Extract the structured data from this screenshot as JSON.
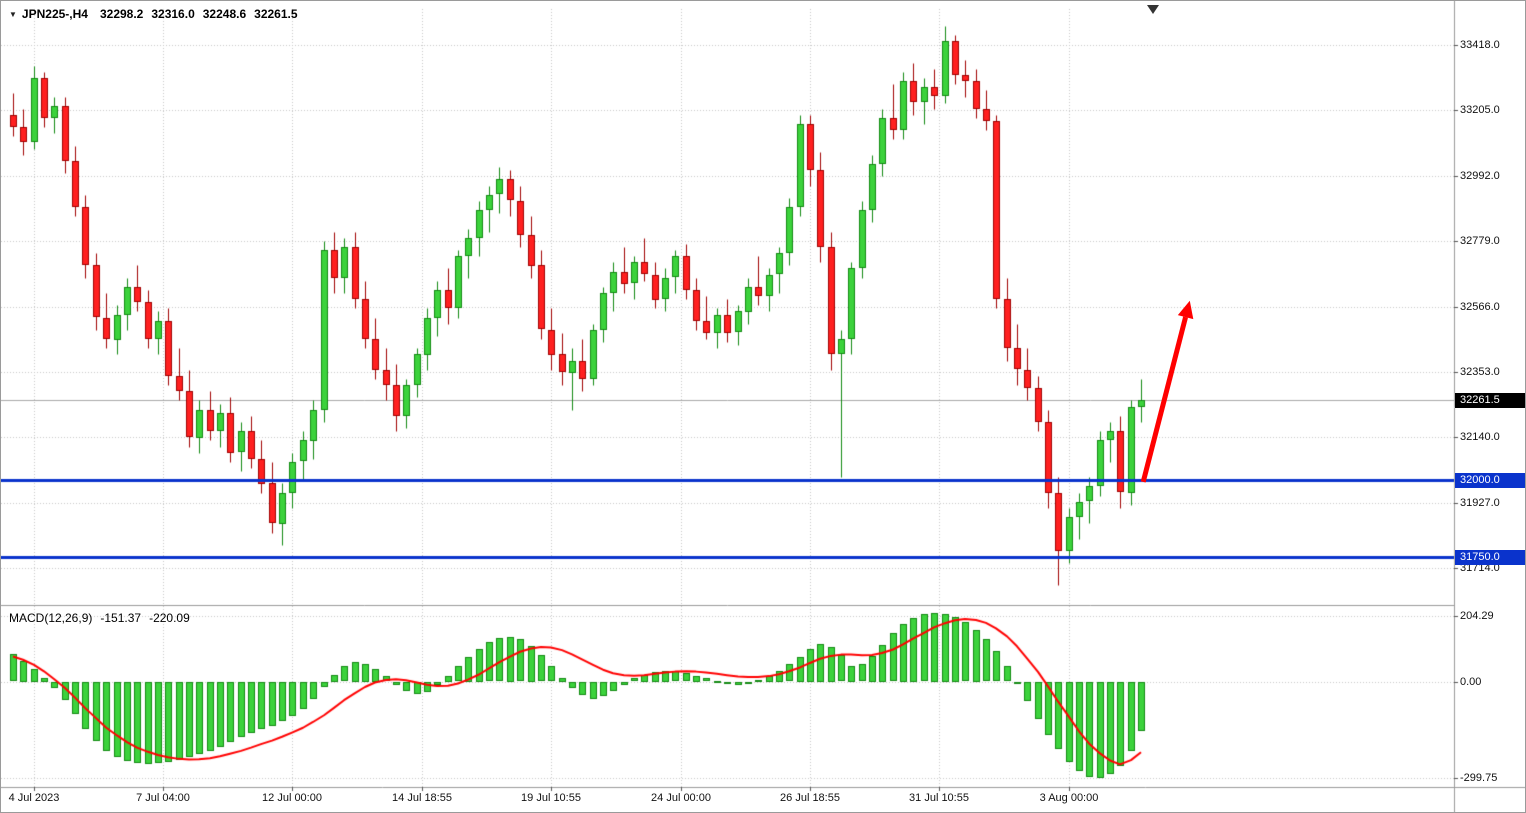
{
  "header": {
    "dropdown_icon": "▼",
    "symbol": "JPN225-,H4",
    "open": "32298.2",
    "high": "32316.0",
    "low": "32248.6",
    "close": "32261.5"
  },
  "current_price": {
    "value": 32261.5,
    "label": "32261.5"
  },
  "hlines": [
    {
      "value": 32000.0,
      "label": "32000.0"
    },
    {
      "value": 31750.0,
      "label": "31750.0"
    }
  ],
  "price_axis": {
    "ticks": [
      {
        "value": 33418.0,
        "label": "33418.0"
      },
      {
        "value": 33205.0,
        "label": "33205.0"
      },
      {
        "value": 32992.0,
        "label": "32992.0"
      },
      {
        "value": 32779.0,
        "label": "32779.0"
      },
      {
        "value": 32566.0,
        "label": "32566.0"
      },
      {
        "value": 32353.0,
        "label": "32353.0"
      },
      {
        "value": 32140.0,
        "label": "32140.0"
      },
      {
        "value": 31927.0,
        "label": "31927.0"
      },
      {
        "value": 31714.0,
        "label": "31714.0"
      }
    ]
  },
  "time_axis": {
    "ticks": [
      {
        "idx": 2,
        "label": "4 Jul 2023"
      },
      {
        "idx": 14.5,
        "label": "7 Jul 04:00"
      },
      {
        "idx": 27,
        "label": "12 Jul 00:00"
      },
      {
        "idx": 39.5,
        "label": "14 Jul 18:55"
      },
      {
        "idx": 52,
        "label": "19 Jul 10:55"
      },
      {
        "idx": 64.5,
        "label": "24 Jul 00:00"
      },
      {
        "idx": 77,
        "label": "26 Jul 18:55"
      },
      {
        "idx": 89.5,
        "label": "31 Jul 10:55"
      },
      {
        "idx": 102,
        "label": "3 Aug 00:00"
      }
    ]
  },
  "macd_panel": {
    "name": "MACD(12,26,9)",
    "main_value": "-151.37",
    "signal_value": "-220.09",
    "ticks": [
      {
        "value": 204.29,
        "label": "204.29"
      },
      {
        "value": 0,
        "label": "0.00"
      },
      {
        "value": -299.75,
        "label": "-299.75"
      }
    ]
  },
  "colors": {
    "bull_fill": "#3cd23c",
    "bull_edge": "#128a12",
    "bear_fill": "#ff2020",
    "bear_edge": "#a00000",
    "grid": "#c6c6c6",
    "hline": "#0a33cc",
    "current_line": "#a8a8a8",
    "signal": "#ff0000",
    "hist_fill": "#3cd23c",
    "hist_edge": "#128a12",
    "arrow": "#ff0000",
    "separator": "#9a9a9a",
    "tick_mark": "#555555"
  },
  "chart_data": {
    "type": "candlestick",
    "symbol": "JPN225-",
    "timeframe": "H4",
    "title": "JPN225-,H4 32298.2 32316.0 32248.6 32261.5",
    "grid": "dotted",
    "ohlc_header": {
      "open": 32298.2,
      "high": 32316.0,
      "low": 32248.6,
      "close": 32261.5
    },
    "y_axis_visible_range": [
      31607,
      33535
    ],
    "price_gridlines": [
      33418,
      33205,
      32992,
      32779,
      32566,
      32353,
      32140,
      31927,
      31714
    ],
    "horizontal_levels": [
      32000.0,
      31750.0
    ],
    "time_labels": [
      "4 Jul 2023",
      "7 Jul 04:00",
      "12 Jul 00:00",
      "14 Jul 18:55",
      "19 Jul 10:55",
      "24 Jul 00:00",
      "26 Jul 18:55",
      "31 Jul 10:55",
      "3 Aug 00:00"
    ],
    "candles_ohlc": [
      [
        33190,
        33260,
        33120,
        33150
      ],
      [
        33150,
        33210,
        33060,
        33100
      ],
      [
        33100,
        33350,
        33080,
        33310
      ],
      [
        33310,
        33330,
        33150,
        33180
      ],
      [
        33180,
        33250,
        33130,
        33220
      ],
      [
        33220,
        33250,
        33000,
        33040
      ],
      [
        33040,
        33090,
        32860,
        32890
      ],
      [
        32890,
        32930,
        32660,
        32700
      ],
      [
        32700,
        32740,
        32490,
        32530
      ],
      [
        32530,
        32610,
        32430,
        32460
      ],
      [
        32460,
        32570,
        32410,
        32540
      ],
      [
        32540,
        32660,
        32490,
        32630
      ],
      [
        32630,
        32700,
        32550,
        32580
      ],
      [
        32580,
        32620,
        32430,
        32460
      ],
      [
        32460,
        32550,
        32410,
        32520
      ],
      [
        32520,
        32560,
        32310,
        32340
      ],
      [
        32340,
        32430,
        32260,
        32290
      ],
      [
        32290,
        32360,
        32110,
        32140
      ],
      [
        32140,
        32260,
        32090,
        32230
      ],
      [
        32230,
        32290,
        32130,
        32160
      ],
      [
        32160,
        32250,
        32110,
        32220
      ],
      [
        32220,
        32270,
        32060,
        32090
      ],
      [
        32090,
        32190,
        32030,
        32160
      ],
      [
        32160,
        32210,
        32040,
        32070
      ],
      [
        32070,
        32130,
        31960,
        31990
      ],
      [
        31990,
        32060,
        31830,
        31860
      ],
      [
        31860,
        31990,
        31790,
        31960
      ],
      [
        31960,
        32090,
        31910,
        32060
      ],
      [
        32060,
        32160,
        32000,
        32130
      ],
      [
        32130,
        32260,
        32070,
        32230
      ],
      [
        32230,
        32780,
        32190,
        32750
      ],
      [
        32750,
        32810,
        32610,
        32660
      ],
      [
        32660,
        32790,
        32610,
        32760
      ],
      [
        32760,
        32810,
        32560,
        32590
      ],
      [
        32590,
        32650,
        32430,
        32460
      ],
      [
        32460,
        32530,
        32330,
        32360
      ],
      [
        32360,
        32430,
        32260,
        32310
      ],
      [
        32310,
        32380,
        32160,
        32210
      ],
      [
        32210,
        32330,
        32170,
        32310
      ],
      [
        32310,
        32430,
        32270,
        32410
      ],
      [
        32410,
        32560,
        32360,
        32530
      ],
      [
        32530,
        32650,
        32470,
        32620
      ],
      [
        32620,
        32690,
        32510,
        32560
      ],
      [
        32560,
        32750,
        32530,
        32730
      ],
      [
        32730,
        32820,
        32660,
        32790
      ],
      [
        32790,
        32910,
        32730,
        32880
      ],
      [
        32880,
        32960,
        32810,
        32930
      ],
      [
        32930,
        33020,
        32870,
        32980
      ],
      [
        32980,
        33010,
        32860,
        32910
      ],
      [
        32910,
        32960,
        32760,
        32800
      ],
      [
        32800,
        32860,
        32660,
        32700
      ],
      [
        32700,
        32750,
        32460,
        32490
      ],
      [
        32490,
        32560,
        32360,
        32410
      ],
      [
        32410,
        32480,
        32310,
        32350
      ],
      [
        32350,
        32430,
        32230,
        32390
      ],
      [
        32390,
        32460,
        32290,
        32330
      ],
      [
        32330,
        32510,
        32310,
        32490
      ],
      [
        32490,
        32630,
        32450,
        32610
      ],
      [
        32610,
        32710,
        32550,
        32680
      ],
      [
        32680,
        32760,
        32610,
        32640
      ],
      [
        32640,
        32730,
        32590,
        32710
      ],
      [
        32710,
        32790,
        32650,
        32670
      ],
      [
        32670,
        32710,
        32560,
        32590
      ],
      [
        32590,
        32690,
        32550,
        32660
      ],
      [
        32660,
        32750,
        32610,
        32730
      ],
      [
        32730,
        32770,
        32590,
        32620
      ],
      [
        32620,
        32660,
        32490,
        32520
      ],
      [
        32520,
        32600,
        32460,
        32480
      ],
      [
        32480,
        32560,
        32430,
        32540
      ],
      [
        32540,
        32590,
        32450,
        32480
      ],
      [
        32480,
        32570,
        32440,
        32550
      ],
      [
        32550,
        32660,
        32510,
        32630
      ],
      [
        32630,
        32730,
        32570,
        32600
      ],
      [
        32600,
        32690,
        32550,
        32670
      ],
      [
        32670,
        32760,
        32610,
        32740
      ],
      [
        32740,
        32920,
        32700,
        32890
      ],
      [
        32890,
        33190,
        32860,
        33160
      ],
      [
        33160,
        33190,
        32960,
        33010
      ],
      [
        33010,
        33070,
        32710,
        32760
      ],
      [
        32760,
        32810,
        32360,
        32410
      ],
      [
        32410,
        32490,
        32010,
        32460
      ],
      [
        32460,
        32710,
        32410,
        32690
      ],
      [
        32690,
        32910,
        32660,
        32880
      ],
      [
        32880,
        33060,
        32840,
        33030
      ],
      [
        33030,
        33210,
        32990,
        33180
      ],
      [
        33180,
        33290,
        33110,
        33140
      ],
      [
        33140,
        33330,
        33110,
        33300
      ],
      [
        33300,
        33360,
        33190,
        33230
      ],
      [
        33230,
        33310,
        33160,
        33280
      ],
      [
        33280,
        33340,
        33210,
        33250
      ],
      [
        33250,
        33480,
        33230,
        33430
      ],
      [
        33430,
        33450,
        33290,
        33320
      ],
      [
        33320,
        33370,
        33250,
        33300
      ],
      [
        33300,
        33340,
        33180,
        33210
      ],
      [
        33210,
        33270,
        33140,
        33170
      ],
      [
        33170,
        33190,
        32560,
        32590
      ],
      [
        32590,
        32660,
        32390,
        32430
      ],
      [
        32430,
        32510,
        32310,
        32360
      ],
      [
        32360,
        32430,
        32260,
        32300
      ],
      [
        32300,
        32340,
        32160,
        32190
      ],
      [
        32190,
        32230,
        31910,
        31960
      ],
      [
        31960,
        32010,
        31660,
        31770
      ],
      [
        31770,
        31910,
        31730,
        31880
      ],
      [
        31880,
        31960,
        31810,
        31930
      ],
      [
        31930,
        32010,
        31860,
        31980
      ],
      [
        31980,
        32160,
        31950,
        32130
      ],
      [
        32130,
        32190,
        32060,
        32160
      ],
      [
        32160,
        32210,
        31910,
        31960
      ],
      [
        31960,
        32260,
        31920,
        32240
      ],
      [
        32240,
        32330,
        32190,
        32261.5
      ]
    ],
    "macd": {
      "params": [
        12,
        26,
        9
      ],
      "current_main": -151.37,
      "current_signal": -220.09,
      "range_visible": [
        -310,
        220
      ],
      "histogram": [
        85,
        65,
        40,
        12,
        -20,
        -55,
        -100,
        -145,
        -185,
        -215,
        -235,
        -246,
        -252,
        -256,
        -253,
        -248,
        -242,
        -235,
        -226,
        -215,
        -202,
        -188,
        -173,
        -159,
        -147,
        -136,
        -123,
        -106,
        -83,
        -53,
        -16,
        22,
        48,
        62,
        56,
        40,
        16,
        -8,
        -28,
        -38,
        -30,
        -8,
        18,
        48,
        78,
        102,
        122,
        135,
        140,
        132,
        112,
        82,
        48,
        12,
        -18,
        -42,
        -52,
        -45,
        -28,
        -8,
        10,
        22,
        30,
        34,
        32,
        26,
        18,
        10,
        2,
        -6,
        -8,
        -4,
        6,
        18,
        34,
        54,
        78,
        102,
        118,
        108,
        82,
        50,
        54,
        80,
        114,
        150,
        180,
        198,
        210,
        215,
        212,
        202,
        185,
        162,
        132,
        95,
        48,
        -5,
        -60,
        -115,
        -165,
        -210,
        -248,
        -278,
        -295,
        -299,
        -288,
        -262,
        -215,
        -151.37
      ],
      "signal": [
        78,
        68,
        52,
        32,
        8,
        -20,
        -50,
        -82,
        -114,
        -143,
        -168,
        -189,
        -206,
        -219,
        -229,
        -236,
        -241,
        -243,
        -242,
        -239,
        -233,
        -225,
        -216,
        -206,
        -195,
        -184,
        -172,
        -159,
        -144,
        -126,
        -105,
        -82,
        -58,
        -36,
        -17,
        -3,
        5,
        7,
        4,
        -3,
        -10,
        -14,
        -13,
        -6,
        6,
        22,
        41,
        60,
        78,
        93,
        103,
        108,
        106,
        98,
        85,
        69,
        52,
        37,
        26,
        20,
        18,
        20,
        24,
        28,
        31,
        32,
        31,
        28,
        24,
        20,
        16,
        14,
        14,
        17,
        23,
        32,
        44,
        58,
        71,
        80,
        84,
        84,
        82,
        83,
        89,
        100,
        116,
        134,
        152,
        169,
        182,
        191,
        195,
        192,
        183,
        166,
        141,
        110,
        72,
        30,
        -15,
        -62,
        -110,
        -155,
        -193,
        -224,
        -246,
        -258,
        -245,
        -220.09
      ]
    },
    "annotation_arrow": {
      "from": {
        "idx": 109.2,
        "price": 31995
      },
      "to": {
        "idx": 113.7,
        "price": 32585
      }
    }
  }
}
